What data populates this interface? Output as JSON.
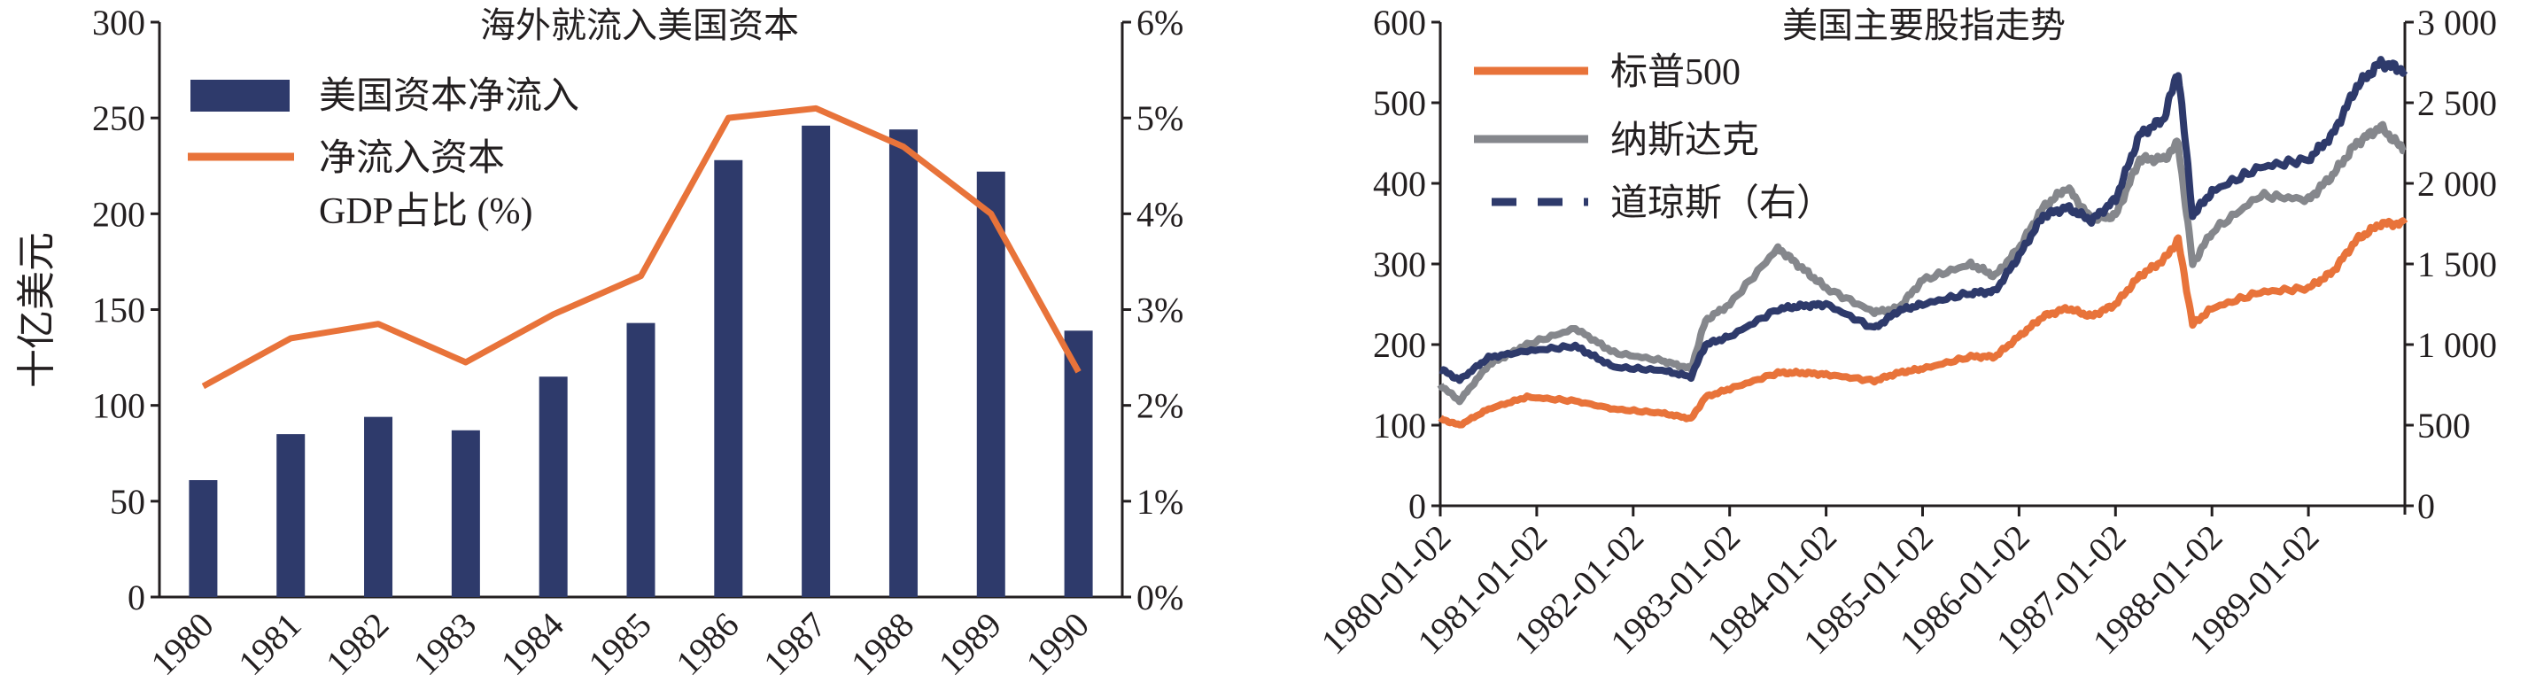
{
  "chart_data": [
    {
      "type": "bar",
      "title": "海外就流入美国资本",
      "ylabel": "十亿美元",
      "ylim": [
        0,
        300
      ],
      "yticks": [
        "0",
        "50",
        "100",
        "150",
        "200",
        "250",
        "300"
      ],
      "y2lim": [
        0,
        6
      ],
      "y2ticks": [
        "0%",
        "1%",
        "2%",
        "3%",
        "4%",
        "5%",
        "6%"
      ],
      "categories": [
        "1980",
        "1981",
        "1982",
        "1983",
        "1984",
        "1985",
        "1986",
        "1987",
        "1988",
        "1989",
        "1990"
      ],
      "series": [
        {
          "name": "美国资本净流入",
          "type": "bar",
          "axis": "left",
          "color": "#2e3a6b",
          "values": [
            61,
            85,
            94,
            87,
            115,
            143,
            228,
            246,
            244,
            222,
            139
          ]
        },
        {
          "name": "净流入资本",
          "name_line2": "GDP占比 (%)",
          "type": "line",
          "axis": "right",
          "color": "#e8733a",
          "values": [
            2.2,
            2.7,
            2.85,
            2.45,
            2.95,
            3.35,
            5.0,
            5.1,
            4.7,
            4.0,
            2.35
          ]
        }
      ],
      "legend": "top-left"
    },
    {
      "type": "line",
      "title": "美国主要股指走势",
      "ylim": [
        0,
        600
      ],
      "yticks": [
        "0",
        "100",
        "200",
        "300",
        "400",
        "500",
        "600"
      ],
      "y2lim": [
        0,
        3000
      ],
      "y2ticks": [
        "0",
        "500",
        "1 000",
        "1 500",
        "2 000",
        "2 500",
        "3 000"
      ],
      "xlim": [
        1980,
        1990
      ],
      "xticks": [
        "1980-01-02",
        "1981-01-02",
        "1982-01-02",
        "1983-01-02",
        "1984-01-02",
        "1985-01-02",
        "1986-01-02",
        "1987-01-02",
        "1988-01-02",
        "1989-01-02"
      ],
      "x": [
        1980.0,
        1980.2,
        1980.5,
        1980.9,
        1981.4,
        1981.8,
        1982.3,
        1982.6,
        1982.75,
        1983.0,
        1983.5,
        1983.75,
        1984.0,
        1984.5,
        1984.75,
        1985.0,
        1985.5,
        1985.75,
        1986.0,
        1986.25,
        1986.5,
        1986.75,
        1987.0,
        1987.25,
        1987.5,
        1987.65,
        1987.8,
        1988.0,
        1988.5,
        1989.0,
        1989.25,
        1989.5,
        1989.75,
        1990.0
      ],
      "series": [
        {
          "name": "标普500",
          "axis": "left",
          "color": "#e8733a",
          "style": "solid",
          "values": [
            108,
            100,
            120,
            135,
            130,
            120,
            115,
            108,
            135,
            145,
            165,
            165,
            163,
            155,
            165,
            170,
            185,
            185,
            210,
            235,
            245,
            235,
            250,
            285,
            305,
            330,
            225,
            245,
            265,
            270,
            290,
            330,
            350,
            350
          ]
        },
        {
          "name": "纳斯达克",
          "axis": "left",
          "color": "#85878c",
          "style": "solid",
          "values": [
            150,
            130,
            175,
            200,
            220,
            190,
            180,
            170,
            230,
            250,
            320,
            295,
            270,
            240,
            245,
            280,
            300,
            285,
            320,
            370,
            395,
            355,
            360,
            430,
            430,
            450,
            300,
            340,
            385,
            380,
            410,
            450,
            470,
            440
          ]
        },
        {
          "name": "道琼斯（右）",
          "axis": "right",
          "color": "#2e3a6b",
          "style": "dashed",
          "values": [
            850,
            780,
            920,
            960,
            990,
            860,
            840,
            800,
            1000,
            1050,
            1220,
            1240,
            1250,
            1100,
            1210,
            1250,
            1320,
            1330,
            1550,
            1800,
            1850,
            1770,
            1900,
            2300,
            2400,
            2700,
            1800,
            1950,
            2100,
            2150,
            2300,
            2600,
            2750,
            2700
          ]
        }
      ],
      "legend": "top-left"
    }
  ]
}
